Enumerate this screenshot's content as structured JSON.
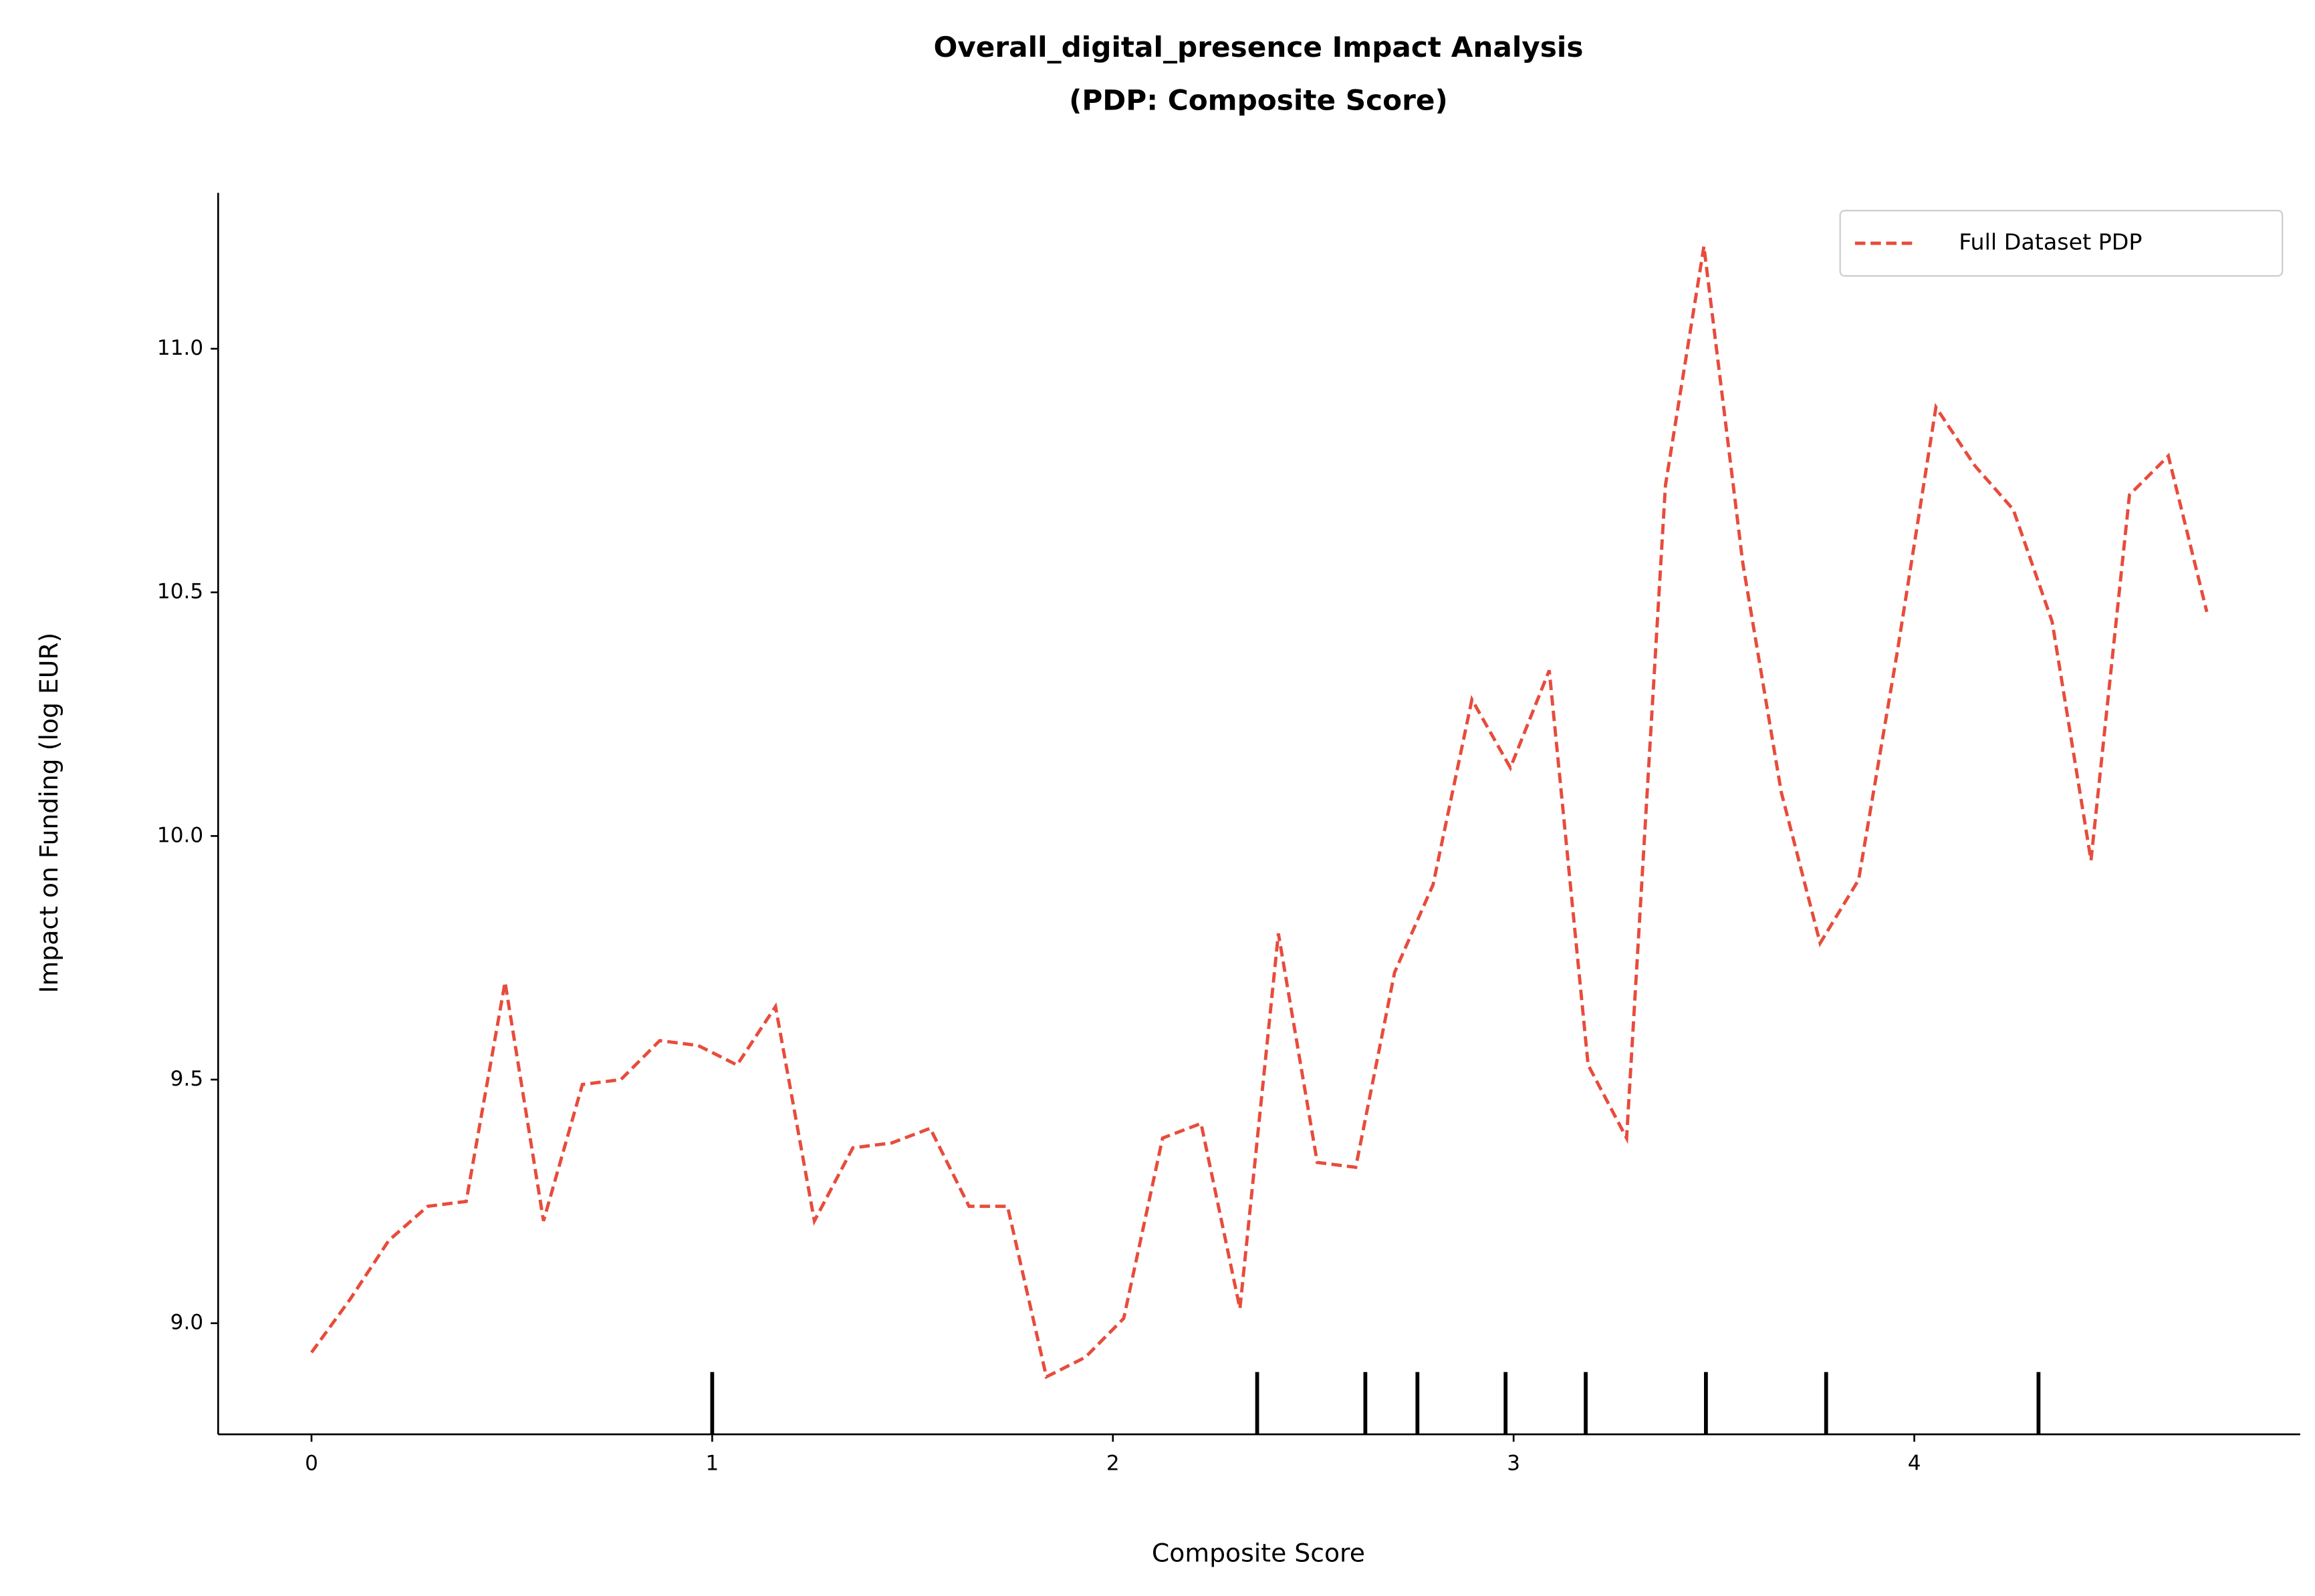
{
  "chart_data": {
    "type": "line",
    "title": "Overall_digital_presence Impact Analysis",
    "subtitle": "(PDP: Composite Score)",
    "x_label": "Composite Score",
    "y_label": "Impact on Funding (log EUR)",
    "x": [
      0,
      0.097,
      0.193,
      0.29,
      0.386,
      0.483,
      0.579,
      0.676,
      0.772,
      0.869,
      0.965,
      1.062,
      1.158,
      1.255,
      1.351,
      1.448,
      1.544,
      1.641,
      1.737,
      1.834,
      1.931,
      2.027,
      2.124,
      2.22,
      2.317,
      2.413,
      2.51,
      2.606,
      2.703,
      2.799,
      2.896,
      2.992,
      3.089,
      3.186,
      3.282,
      3.379,
      3.475,
      3.572,
      3.668,
      3.765,
      3.861,
      3.958,
      4.054,
      4.151,
      4.247,
      4.344,
      4.441,
      4.537,
      4.634,
      4.73
    ],
    "series": [
      {
        "name": "Full Dataset PDP",
        "color": "#e74c3c",
        "values": [
          8.94,
          9.05,
          9.17,
          9.24,
          9.25,
          9.7,
          9.21,
          9.49,
          9.5,
          9.58,
          9.57,
          9.53,
          9.65,
          9.21,
          9.36,
          9.37,
          9.4,
          9.24,
          9.24,
          8.89,
          8.93,
          9.01,
          9.38,
          9.41,
          9.03,
          9.8,
          9.33,
          9.32,
          9.72,
          9.9,
          10.28,
          10.14,
          10.34,
          9.53,
          9.38,
          10.72,
          11.21,
          10.56,
          10.09,
          9.78,
          9.91,
          10.38,
          10.88,
          10.76,
          10.67,
          10.44,
          9.95,
          10.7,
          10.78,
          10.46
        ]
      }
    ],
    "rug": [
      1.0,
      2.36,
      2.63,
      2.76,
      2.98,
      3.18,
      3.48,
      3.78,
      4.31
    ],
    "rug_color": "#000000",
    "xlim": [
      -0.233,
      4.963
    ],
    "xticks": [
      0,
      1,
      2,
      3,
      4
    ],
    "ylim": [
      8.772,
      11.32
    ],
    "yticks": [
      {
        "value": 9,
        "label": "9.0"
      },
      9.5,
      {
        "value": 10,
        "label": "10.0"
      },
      10.5,
      {
        "value": 11,
        "label": "11.0"
      }
    ],
    "legend": "upper right"
  }
}
